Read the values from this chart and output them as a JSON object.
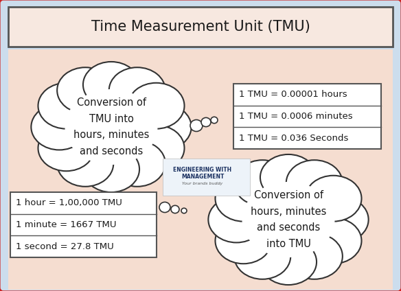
{
  "title": "Time Measurement Unit (TMU)",
  "bg_color": "#f5ddd0",
  "title_box_color": "#f7e8e0",
  "title_font_size": 15,
  "tmu_to_hours": "1 TMU = 0.00001 hours",
  "tmu_to_minutes": "1 TMU = 0.0006 minutes",
  "tmu_to_seconds": "1 TMU = 0.036 Seconds",
  "hour_to_tmu": "1 hour = 1,00,000 TMU",
  "minute_to_tmu": "1 minute = 1667 TMU",
  "second_to_tmu": "1 second = 27.8 TMU",
  "cloud1_text": "Conversion of\nTMU into\nhours, minutes\nand seconds",
  "cloud2_text": "Conversion of\nhours, minutes\nand seconds\ninto TMU",
  "box_border_color": "#555555",
  "text_color": "#1a1a1a",
  "header_bg": "#ccdded",
  "outer_red_border": "#cc2222",
  "cloud_edge": "#333333",
  "white": "#ffffff"
}
